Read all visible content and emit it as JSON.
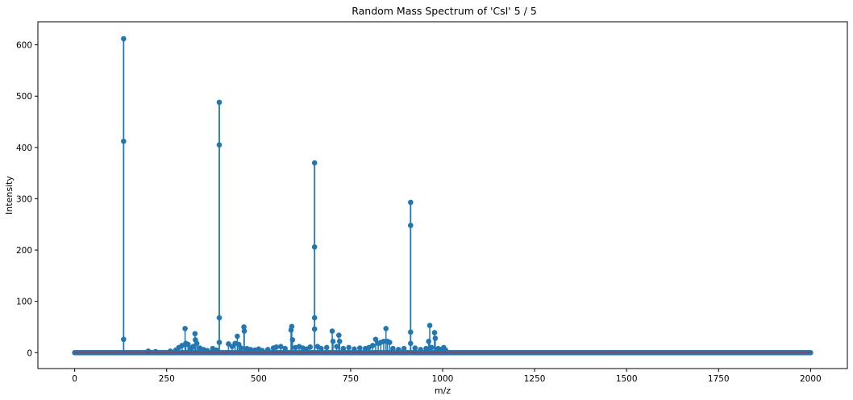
{
  "chart_data": {
    "type": "stem",
    "title": "Random Mass Spectrum of 'CsI' 5 / 5",
    "xlabel": "m/z",
    "ylabel": "Intensity",
    "xlim": [
      -100,
      2100
    ],
    "ylim": [
      -31,
      645
    ],
    "xticks": [
      0,
      250,
      500,
      750,
      1000,
      1250,
      1500,
      1750,
      2000
    ],
    "yticks": [
      0,
      100,
      200,
      300,
      400,
      500,
      600
    ],
    "grid": false,
    "legend": "none",
    "colors": {
      "stem": "#1f77b4",
      "baseline": "#d62728"
    },
    "major_peaks": [
      {
        "x": 133,
        "values": [
          612,
          412,
          26
        ]
      },
      {
        "x": 393,
        "values": [
          488,
          405,
          68,
          20
        ]
      },
      {
        "x": 652,
        "values": [
          370,
          206,
          68,
          46
        ]
      },
      {
        "x": 913,
        "values": [
          293,
          248,
          40,
          18
        ]
      }
    ],
    "minor_peaks": [
      {
        "x": 275,
        "y": 5
      },
      {
        "x": 283,
        "y": 10
      },
      {
        "x": 292,
        "y": 14
      },
      {
        "x": 300,
        "y": 47
      },
      {
        "x": 302,
        "y": 18
      },
      {
        "x": 308,
        "y": 16
      },
      {
        "x": 316,
        "y": 8
      },
      {
        "x": 322,
        "y": 12
      },
      {
        "x": 327,
        "y": 37
      },
      {
        "x": 328,
        "y": 25
      },
      {
        "x": 332,
        "y": 18
      },
      {
        "x": 340,
        "y": 9
      },
      {
        "x": 350,
        "y": 6
      },
      {
        "x": 360,
        "y": 4
      },
      {
        "x": 375,
        "y": 8
      },
      {
        "x": 385,
        "y": 5
      },
      {
        "x": 418,
        "y": 17
      },
      {
        "x": 428,
        "y": 12
      },
      {
        "x": 436,
        "y": 18
      },
      {
        "x": 442,
        "y": 32
      },
      {
        "x": 446,
        "y": 16
      },
      {
        "x": 452,
        "y": 9
      },
      {
        "x": 460,
        "y": 50
      },
      {
        "x": 461,
        "y": 42
      },
      {
        "x": 468,
        "y": 8
      },
      {
        "x": 478,
        "y": 6
      },
      {
        "x": 490,
        "y": 5
      },
      {
        "x": 500,
        "y": 7
      },
      {
        "x": 510,
        "y": 4
      },
      {
        "x": 525,
        "y": 6
      },
      {
        "x": 540,
        "y": 9
      },
      {
        "x": 548,
        "y": 11
      },
      {
        "x": 560,
        "y": 12
      },
      {
        "x": 572,
        "y": 8
      },
      {
        "x": 588,
        "y": 44
      },
      {
        "x": 590,
        "y": 51
      },
      {
        "x": 592,
        "y": 25
      },
      {
        "x": 600,
        "y": 10
      },
      {
        "x": 610,
        "y": 12
      },
      {
        "x": 620,
        "y": 9
      },
      {
        "x": 630,
        "y": 7
      },
      {
        "x": 640,
        "y": 11
      },
      {
        "x": 660,
        "y": 12
      },
      {
        "x": 670,
        "y": 8
      },
      {
        "x": 685,
        "y": 10
      },
      {
        "x": 700,
        "y": 42
      },
      {
        "x": 702,
        "y": 22
      },
      {
        "x": 712,
        "y": 12
      },
      {
        "x": 718,
        "y": 34
      },
      {
        "x": 720,
        "y": 22
      },
      {
        "x": 730,
        "y": 8
      },
      {
        "x": 745,
        "y": 10
      },
      {
        "x": 760,
        "y": 7
      },
      {
        "x": 775,
        "y": 9
      },
      {
        "x": 790,
        "y": 8
      },
      {
        "x": 800,
        "y": 10
      },
      {
        "x": 810,
        "y": 14
      },
      {
        "x": 818,
        "y": 26
      },
      {
        "x": 825,
        "y": 18
      },
      {
        "x": 832,
        "y": 20
      },
      {
        "x": 840,
        "y": 22
      },
      {
        "x": 846,
        "y": 47
      },
      {
        "x": 850,
        "y": 22
      },
      {
        "x": 856,
        "y": 20
      },
      {
        "x": 865,
        "y": 8
      },
      {
        "x": 880,
        "y": 6
      },
      {
        "x": 895,
        "y": 8
      },
      {
        "x": 925,
        "y": 9
      },
      {
        "x": 940,
        "y": 6
      },
      {
        "x": 955,
        "y": 8
      },
      {
        "x": 962,
        "y": 22
      },
      {
        "x": 965,
        "y": 53
      },
      {
        "x": 970,
        "y": 10
      },
      {
        "x": 978,
        "y": 39
      },
      {
        "x": 980,
        "y": 28
      },
      {
        "x": 988,
        "y": 8
      },
      {
        "x": 995,
        "y": 6
      },
      {
        "x": 1003,
        "y": 10
      },
      {
        "x": 1008,
        "y": 5
      },
      {
        "x": 200,
        "y": 3
      },
      {
        "x": 220,
        "y": 2
      },
      {
        "x": 260,
        "y": 3
      }
    ],
    "baseline_range": [
      0,
      2000
    ],
    "baseline_step": 5
  }
}
